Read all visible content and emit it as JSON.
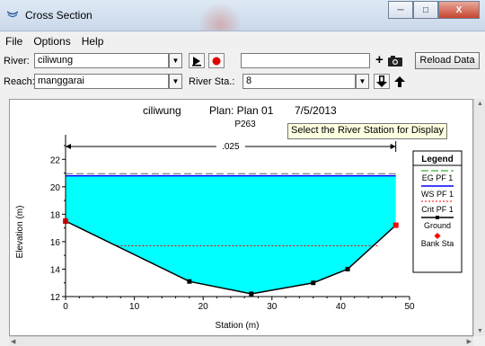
{
  "window": {
    "title": "Cross Section",
    "controls": {
      "minimize": "─",
      "maximize": "□",
      "close": "X"
    }
  },
  "menu": [
    "File",
    "Options",
    "Help"
  ],
  "toolbar": {
    "river_label": "River:",
    "river_value": "ciliwung",
    "reach_label": "Reach:",
    "reach_value": "manggarai",
    "river_sta_label": "River Sta.:",
    "river_sta_value": "8",
    "empty_field_value": "",
    "reload_label": "Reload Data",
    "plus_label": "+",
    "icons": [
      "play-icon",
      "record-icon",
      "add-icon",
      "camera-icon",
      "down-arrow-icon",
      "up-arrow-icon"
    ]
  },
  "tooltip": "Select the River Station for Display",
  "chart": {
    "header_river": "ciliwung",
    "header_plan": "Plan: Plan 01",
    "header_date": "7/5/2013",
    "subtitle": "P263",
    "n_value_label": ".025",
    "xlabel": "Station (m)",
    "ylabel": "Elevation (m)",
    "x_ticks": [
      "0",
      "10",
      "20",
      "30",
      "40",
      "50"
    ],
    "y_ticks": [
      "12",
      "14",
      "16",
      "18",
      "20",
      "22"
    ],
    "legend_title": "Legend",
    "legend_items": [
      "EG PF 1",
      "WS PF 1",
      "Crit PF 1",
      "Ground",
      "Bank Sta"
    ]
  },
  "chart_data": {
    "type": "line",
    "xlim": [
      0,
      50
    ],
    "ylim": [
      12,
      23
    ],
    "ground": {
      "x": [
        0,
        18,
        27,
        36,
        41,
        48
      ],
      "y": [
        17.5,
        13.1,
        12.2,
        13.0,
        14.0,
        17.2
      ]
    },
    "bank_stations": {
      "x": [
        0,
        48
      ],
      "y": [
        17.5,
        17.2
      ]
    },
    "ws_elevation": 20.8,
    "eg_elevation": 20.95,
    "crit_elevation": 15.7,
    "crit_x_range": [
      7.5,
      45.5
    ],
    "n_range": [
      0,
      48
    ],
    "colors": {
      "water": "#00ffff",
      "ground": "#000000",
      "bank": "#ff0000",
      "eg": "#00a000",
      "ws": "#0000ff",
      "crit": "#ff0000"
    }
  }
}
